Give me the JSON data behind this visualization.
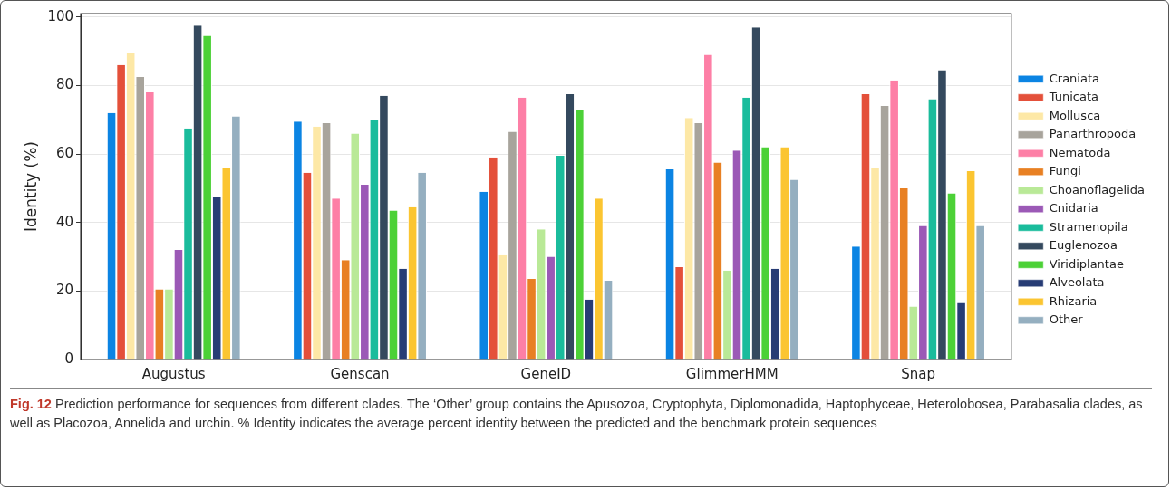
{
  "chart_data": {
    "type": "bar",
    "ylabel": "Identity (%)",
    "categories": [
      "Augustus",
      "Genscan",
      "GeneID",
      "GlimmerHMM",
      "Snap"
    ],
    "series": [
      {
        "name": "Craniata",
        "color": "#0b84e3",
        "values": [
          72,
          69.5,
          49,
          55.5,
          33
        ]
      },
      {
        "name": "Tunicata",
        "color": "#e4503a",
        "values": [
          86,
          54.5,
          59,
          27,
          77.5
        ]
      },
      {
        "name": "Mollusca",
        "color": "#fde8a6",
        "values": [
          89.5,
          68,
          30.5,
          70.5,
          56
        ]
      },
      {
        "name": "Panarthropoda",
        "color": "#a8a49c",
        "values": [
          82.5,
          69,
          66.5,
          69,
          74
        ]
      },
      {
        "name": "Nematoda",
        "color": "#fd7fa6",
        "values": [
          78,
          47,
          76.5,
          89,
          81.5
        ]
      },
      {
        "name": "Fungi",
        "color": "#e88023",
        "values": [
          20.5,
          29,
          23.5,
          57.5,
          50
        ]
      },
      {
        "name": "Choanoflagelida",
        "color": "#b9e997",
        "values": [
          20.5,
          66,
          38,
          26,
          15.5
        ]
      },
      {
        "name": "Cnidaria",
        "color": "#9b59b6",
        "values": [
          32,
          51,
          30,
          61,
          39
        ]
      },
      {
        "name": "Stramenopila",
        "color": "#1abc9c",
        "values": [
          67.5,
          70,
          59.5,
          76.5,
          76
        ]
      },
      {
        "name": "Euglenozoa",
        "color": "#34495e",
        "values": [
          97.5,
          77,
          77.5,
          97,
          84.5
        ]
      },
      {
        "name": "Viridiplantae",
        "color": "#4cd137",
        "values": [
          94.5,
          43.5,
          73,
          62,
          48.5
        ]
      },
      {
        "name": "Alveolata",
        "color": "#273c75",
        "values": [
          47.5,
          26.5,
          17.5,
          26.5,
          16.5
        ]
      },
      {
        "name": "Rhizaria",
        "color": "#fbc531",
        "values": [
          56,
          44.5,
          47,
          62,
          55
        ]
      },
      {
        "name": "Other",
        "color": "#95afc0",
        "values": [
          71,
          54.5,
          23,
          52.5,
          39
        ]
      }
    ],
    "ylim": [
      0,
      101
    ],
    "yticks": [
      0,
      20,
      40,
      60,
      80,
      100
    ],
    "grid": "y",
    "legend": "right",
    "annotations": [
      "Fig. 12",
      "Prediction performance for sequences from different clades. The ‘Other’ group contains the Apusozoa, Cryptophyta, Diplomonadida, Haptophyceae, Heterolobosea, Parabasalia clades, as well as Placozoa, Annelida and urchin. % Identity indicates the average percent identity between the predicted and the benchmark protein sequences"
    ]
  }
}
